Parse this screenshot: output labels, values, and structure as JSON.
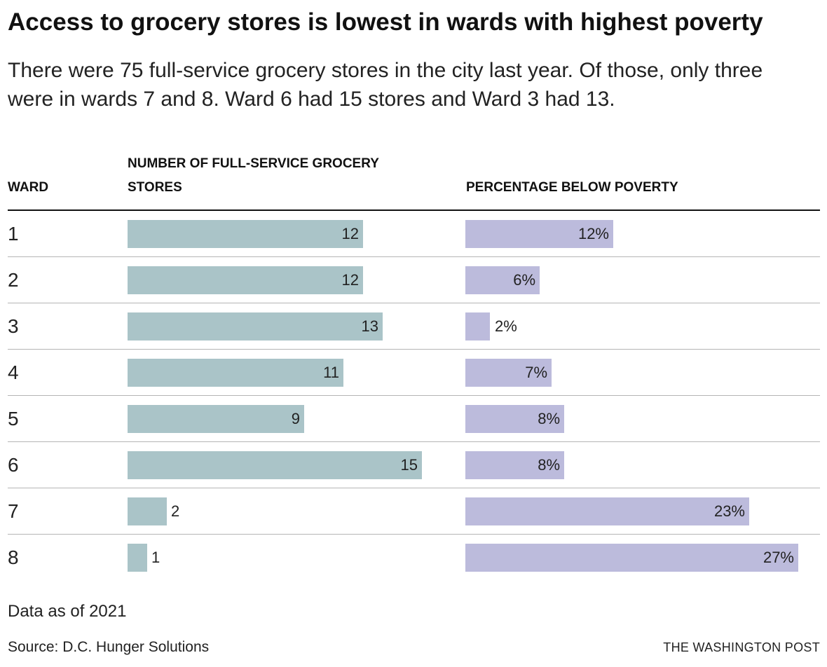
{
  "chart_data": {
    "type": "bar",
    "title": "Access to grocery stores is lowest in wards with highest poverty",
    "subtitle": "There were 75 full-service grocery stores in the city last year. Of those, only three were in wards 7 and 8. Ward 6 had 15 stores and Ward 3 had 13.",
    "row_header": "WARD",
    "categories": [
      "1",
      "2",
      "3",
      "4",
      "5",
      "6",
      "7",
      "8"
    ],
    "series": [
      {
        "name": "NUMBER OF FULL-SERVICE GROCERY STORES",
        "values": [
          12,
          12,
          13,
          11,
          9,
          15,
          2,
          1
        ],
        "labels": [
          "12",
          "12",
          "13",
          "11",
          "9",
          "15",
          "2",
          "1"
        ],
        "color": "#aac4c8"
      },
      {
        "name": "PERCENTAGE BELOW POVERTY",
        "values": [
          12,
          6,
          2,
          7,
          8,
          8,
          23,
          27
        ],
        "labels": [
          "12%",
          "6%",
          "2%",
          "7%",
          "8%",
          "8%",
          "23%",
          "27%"
        ],
        "color": "#bcbbdc"
      }
    ],
    "footnote": "Data as of 2021",
    "source": "Source: D.C. Hunger Solutions",
    "credit": "THE WASHINGTON POST"
  }
}
